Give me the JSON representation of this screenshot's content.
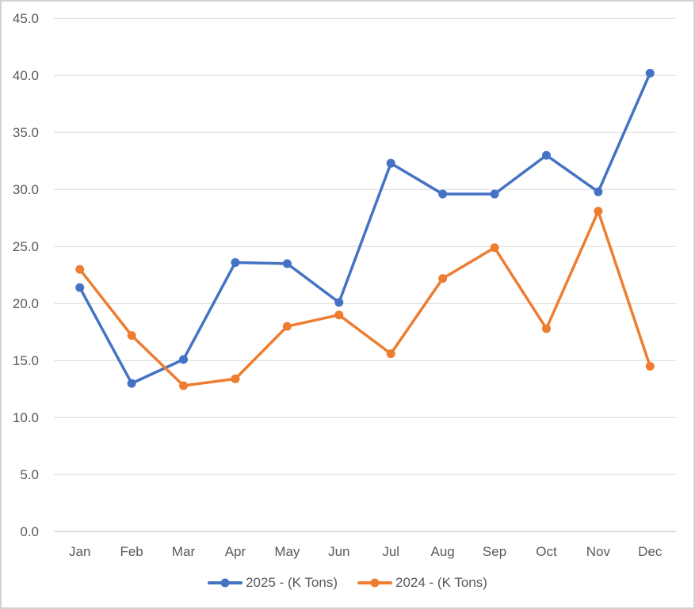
{
  "chart_data": {
    "type": "line",
    "title": "",
    "xlabel": "",
    "ylabel": "",
    "categories": [
      "Jan",
      "Feb",
      "Mar",
      "Apr",
      "May",
      "Jun",
      "Jul",
      "Aug",
      "Sep",
      "Oct",
      "Nov",
      "Dec"
    ],
    "series": [
      {
        "name": "2025 - (K Tons)",
        "color": "#4472C4",
        "values": [
          21.4,
          13.0,
          15.1,
          23.6,
          23.5,
          20.1,
          32.3,
          29.6,
          29.6,
          33.0,
          29.8,
          40.2
        ]
      },
      {
        "name": "2024 - (K Tons)",
        "color": "#ED7D31",
        "values": [
          23.0,
          17.2,
          12.8,
          13.4,
          18.0,
          19.0,
          15.6,
          22.2,
          24.9,
          17.8,
          28.1,
          14.5
        ]
      }
    ],
    "ylim": [
      0,
      45
    ],
    "ytick_step": 5,
    "ytick_labels": [
      "0.0",
      "5.0",
      "10.0",
      "15.0",
      "20.0",
      "25.0",
      "30.0",
      "35.0",
      "40.0",
      "45.0"
    ],
    "grid": "horizontal",
    "legend_position": "bottom-center",
    "marker": "circle",
    "colors": {
      "axis_text": "#595959",
      "gridline": "#D9D9D9",
      "axis_line": "#BFBFBF",
      "background": "#FFFFFF",
      "frame_border": "#D2D2D2"
    }
  }
}
